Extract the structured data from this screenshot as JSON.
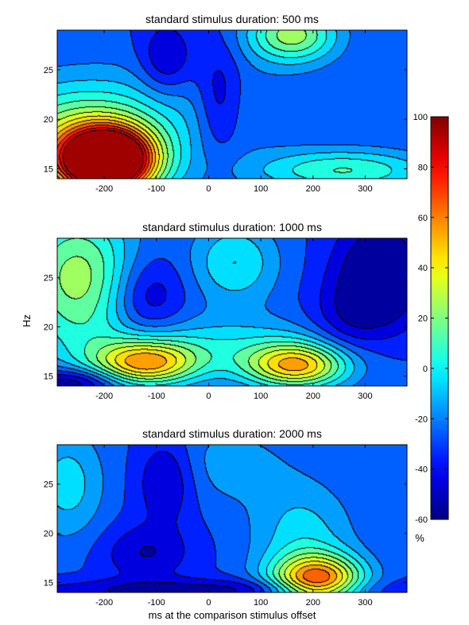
{
  "chart_data": [
    {
      "type": "heatmap",
      "title": "standard stimulus duration: 500 ms",
      "xlim": [
        -290,
        380
      ],
      "ylim": [
        14,
        29
      ],
      "xticks": [
        -200,
        -100,
        0,
        100,
        200,
        300
      ],
      "yticks": [
        15,
        20,
        25
      ],
      "xlabel": "",
      "blobs": [
        {
          "x": -195,
          "y": 15.8,
          "sx": 60,
          "sy": 2.2,
          "a": 170
        },
        {
          "x": -250,
          "y": 17.5,
          "sx": 120,
          "sy": 4.0,
          "a": 60
        },
        {
          "x": 160,
          "y": 28.5,
          "sx": 60,
          "sy": 2.0,
          "a": 55
        },
        {
          "x": 260,
          "y": 14.8,
          "sx": 120,
          "sy": 1.5,
          "a": 40
        },
        {
          "x": -40,
          "y": 21.0,
          "sx": 150,
          "sy": 4.0,
          "a": 10
        },
        {
          "x": -80,
          "y": 26.0,
          "sx": 35,
          "sy": 2.5,
          "a": -25
        },
        {
          "x": 20,
          "y": 22.0,
          "sx": 30,
          "sy": 4.0,
          "a": -22
        }
      ]
    },
    {
      "type": "heatmap",
      "title": "standard stimulus duration: 1000 ms",
      "xlim": [
        -290,
        380
      ],
      "ylim": [
        14,
        29
      ],
      "xticks": [
        -200,
        -100,
        0,
        100,
        200,
        300
      ],
      "yticks": [
        15,
        20,
        25
      ],
      "xlabel": "",
      "blobs": [
        {
          "x": -120,
          "y": 16.3,
          "sx": 70,
          "sy": 1.6,
          "a": 75
        },
        {
          "x": 170,
          "y": 16.0,
          "sx": 70,
          "sy": 1.6,
          "a": 75
        },
        {
          "x": 20,
          "y": 18.0,
          "sx": 180,
          "sy": 2.2,
          "a": 25
        },
        {
          "x": -250,
          "y": 25.0,
          "sx": 80,
          "sy": 5.0,
          "a": 55
        },
        {
          "x": 50,
          "y": 26.5,
          "sx": 60,
          "sy": 3.0,
          "a": 30
        },
        {
          "x": 330,
          "y": 25.0,
          "sx": 60,
          "sy": 4.0,
          "a": -40
        },
        {
          "x": -120,
          "y": 23.0,
          "sx": 50,
          "sy": 3.0,
          "a": -25
        },
        {
          "x": 260,
          "y": 20.0,
          "sx": 50,
          "sy": 3.0,
          "a": -15
        },
        {
          "x": -260,
          "y": 14.3,
          "sx": 60,
          "sy": 1.0,
          "a": -35
        }
      ]
    },
    {
      "type": "heatmap",
      "title": "standard stimulus duration: 2000 ms",
      "xlim": [
        -290,
        380
      ],
      "ylim": [
        14,
        29
      ],
      "xticks": [
        -200,
        -100,
        0,
        100,
        200,
        300
      ],
      "yticks": [
        15,
        20,
        25
      ],
      "xlabel": "ms at the comparison stimulus offset",
      "blobs": [
        {
          "x": 210,
          "y": 15.2,
          "sx": 60,
          "sy": 1.8,
          "a": 90
        },
        {
          "x": 180,
          "y": 19.5,
          "sx": 70,
          "sy": 4.0,
          "a": 25
        },
        {
          "x": -270,
          "y": 25.0,
          "sx": 50,
          "sy": 4.0,
          "a": 25
        },
        {
          "x": 30,
          "y": 27.0,
          "sx": 90,
          "sy": 3.0,
          "a": 15
        },
        {
          "x": -80,
          "y": 25.5,
          "sx": 40,
          "sy": 3.0,
          "a": -25
        },
        {
          "x": -120,
          "y": 18.0,
          "sx": 60,
          "sy": 2.0,
          "a": -20
        },
        {
          "x": 0,
          "y": 14.2,
          "sx": 250,
          "sy": 0.8,
          "a": -25
        }
      ]
    }
  ],
  "colorbar": {
    "range": [
      -60,
      100
    ],
    "ticks": [
      -60,
      -40,
      -20,
      0,
      20,
      40,
      60,
      80,
      100
    ],
    "unit_label": "%"
  },
  "ylabel": "Hz",
  "base_value": -30,
  "levels": [
    -50,
    -40,
    -30,
    -20,
    -10,
    0,
    10,
    20,
    30,
    40,
    50,
    60,
    70,
    80,
    90
  ]
}
